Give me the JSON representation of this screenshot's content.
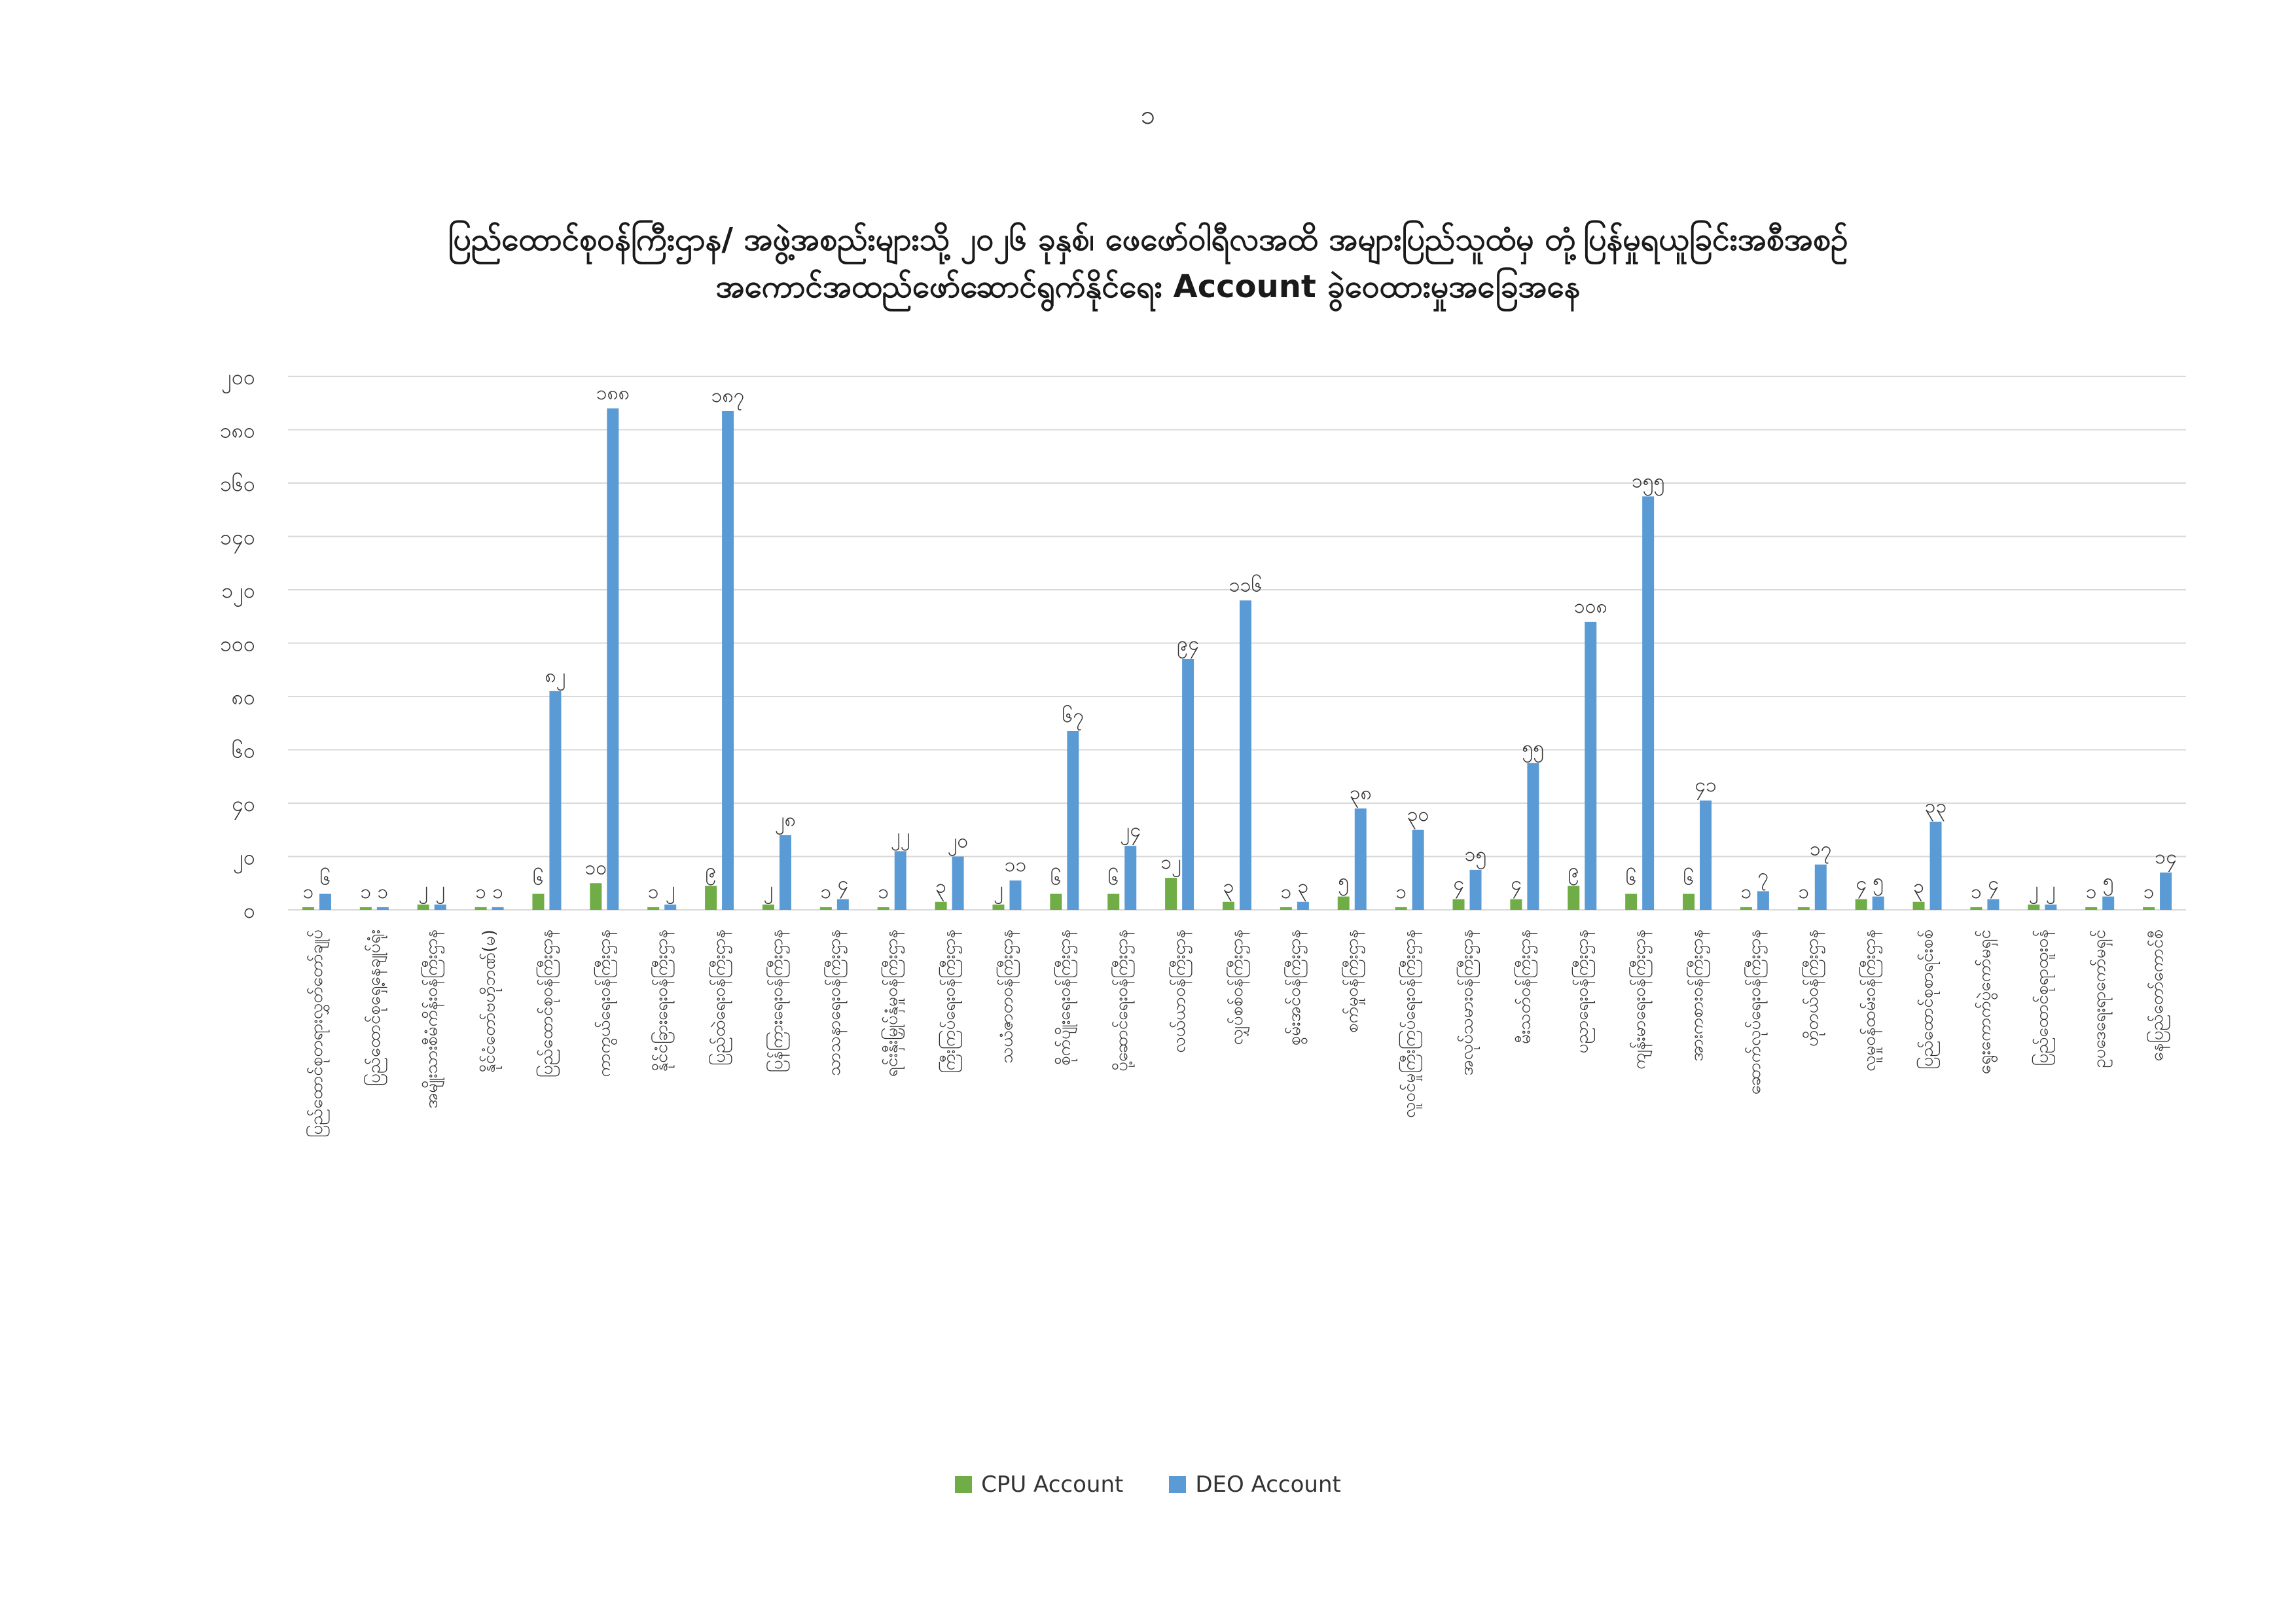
{
  "page": {
    "number": "၁"
  },
  "colors": {
    "cpu": "#70AD47",
    "deo": "#5B9BD5",
    "grid": "#D9D9D9",
    "axis_text": "#333333"
  },
  "chart_data": {
    "type": "bar",
    "title_lines": [
      "ပြည်ထောင်စုဝန်ကြီးဌာန/ အဖွဲ့အစည်းများသို့ ၂၀၂၆ ခုနှစ်၊ ဖေဖော်ဝါရီလအထိ အများပြည်သူထံမှ တုံ့ပြန်မှုရယူခြင်းအစီအစဉ်",
      "အကောင်အထည်ဖော်ဆောင်ရွက်နိုင်ရေး Account ခွဲဝေထားမှုအခြေအနေ"
    ],
    "ylim": [
      0,
      200
    ],
    "ytick_values": [
      0,
      20,
      40,
      60,
      80,
      100,
      120,
      140,
      160,
      180,
      200
    ],
    "ytick_labels": [
      "၀",
      "၂၀",
      "၄၀",
      "၆၀",
      "၈၀",
      "၁၀၀",
      "၁၂၀",
      "၁၄၀",
      "၁၆၀",
      "၁၈၀",
      "၂၀၀"
    ],
    "grid": true,
    "legend_position": "bottom-center",
    "categories": [
      "ပြည်ထောင်စုတရားလွှတ်တော်ချုပ်",
      "ပြည်ထောင်စုရှေ့နေချုပ်ရုံး",
      "အမျိုးသားစီမံကိန်းဝန်ကြီးဌာန",
      "နိုင်ငံတော်ဗဟိုဘဏ်(မ)",
      "ပြည်ထောင်စုဝန်ကြီးဌာန",
      "ကာကွယ်ရေးဝန်ကြီးဌာန",
      "နိုင်ငံခြားရေးဝန်ကြီးဌာန",
      "ပြည်ထဲရေးဝန်ကြီးဌာန",
      "ပြန်ကြားရေးဝန်ကြီးဌာန",
      "သာသနာရေးဝန်ကြီးဌာန",
      "ရင်းနှီးမြှုပ်နှံမှုဝန်ကြီးဌာန",
      "ကြီးကြပ်ရေးဝန်ကြီးဌာန",
      "သယံဇာတဝန်ကြီးဌာန",
      "စိုက်ပျိုးရေးဝန်ကြီးဌာန",
      "ပို့ဆောင်ရေးဝန်ကြီးဌာန",
      "လယ်ယာဝန်ကြီးဌာန",
      "လျှပ်စစ်ဝန်ကြီးဌာန",
      "စွမ်းအင်ဝန်ကြီးဌာန",
      "စက်မှုဝန်ကြီးဌာန",
      "လူဝင်မှုကြီးကြပ်ရေးဝန်ကြီးဌာန",
      "အလုပ်သမားဝန်ကြီးဌာန",
      "မီးသတ်ဝန်ကြီးဌာန",
      "ပညာရေးဝန်ကြီးဌာန",
      "ကျန်းမာရေးဝန်ကြီးဌာန",
      "အားကစားဝန်ကြီးဌာန",
      "ဆောက်လုပ်ရေးဝန်ကြီးဌာန",
      "ဟိုတယ်ဝန်ကြီးဌာန",
      "လူမှုဝန်ထမ်းဝန်ကြီးဌာန",
      "ပြည်ထောင်စုစာရင်းစစ်",
      "ရွေးကောက်ပွဲကော်မရှင်",
      "ပြည်ထောင်စုရာထူးဝန်",
      "ဥပဒေရေးရာကော်မရှင်",
      "နေပြည်တော်ကောင်စီ"
    ],
    "series": [
      {
        "name": "CPU Account",
        "values": [
          1,
          1,
          2,
          1,
          6,
          10,
          1,
          9,
          2,
          1,
          1,
          3,
          2,
          6,
          6,
          12,
          3,
          1,
          5,
          1,
          4,
          4,
          9,
          6,
          6,
          1,
          1,
          4,
          3,
          1,
          2,
          1,
          1
        ],
        "value_labels": [
          "၁",
          "၁",
          "၂",
          "၁",
          "၆",
          "၁၀",
          "၁",
          "၉",
          "၂",
          "၁",
          "၁",
          "၃",
          "၂",
          "၆",
          "၆",
          "၁၂",
          "၃",
          "၁",
          "၅",
          "၁",
          "၄",
          "၄",
          "၉",
          "၆",
          "၆",
          "၁",
          "၁",
          "၄",
          "၃",
          "၁",
          "၂",
          "၁",
          "၁"
        ]
      },
      {
        "name": "DEO Account",
        "values": [
          6,
          1,
          2,
          1,
          82,
          188,
          2,
          187,
          28,
          4,
          22,
          20,
          11,
          67,
          24,
          94,
          116,
          3,
          38,
          30,
          15,
          55,
          108,
          155,
          41,
          7,
          17,
          5,
          33,
          4,
          2,
          5,
          14
        ],
        "value_labels": [
          "၆",
          "၁",
          "၂",
          "၁",
          "၈၂",
          "၁၈၈",
          "၂",
          "၁၈၇",
          "၂၈",
          "၄",
          "၂၂",
          "၂၀",
          "၁၁",
          "၆၇",
          "၂၄",
          "၉၄",
          "၁၁၆",
          "၃",
          "၃၈",
          "၃၀",
          "၁၅",
          "၅၅",
          "၁၀၈",
          "၁၅၅",
          "၄၁",
          "၇",
          "၁၇",
          "၅",
          "၃၃",
          "၄",
          "၂",
          "၅",
          "၁၄"
        ]
      }
    ]
  }
}
